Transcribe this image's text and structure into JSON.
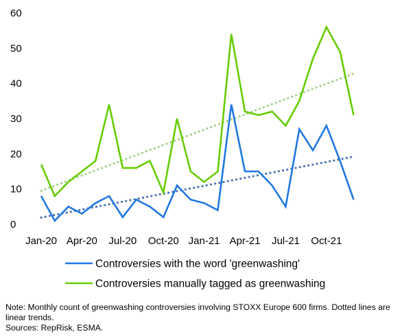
{
  "chart_data": {
    "type": "line",
    "x": [
      "Jan-20",
      "Feb-20",
      "Mar-20",
      "Apr-20",
      "May-20",
      "Jun-20",
      "Jul-20",
      "Aug-20",
      "Sep-20",
      "Oct-20",
      "Nov-20",
      "Dec-20",
      "Jan-21",
      "Feb-21",
      "Mar-21",
      "Apr-21",
      "May-21",
      "Jun-21",
      "Jul-21",
      "Aug-21",
      "Sep-21",
      "Oct-21",
      "Nov-21",
      "Dec-21"
    ],
    "x_tick_labels": [
      "Jan-20",
      "Apr-20",
      "Jul-20",
      "Oct-20",
      "Jan-21",
      "Apr-21",
      "Jul-21",
      "Oct-21"
    ],
    "y_ticks": [
      0,
      10,
      20,
      30,
      40,
      50,
      60
    ],
    "ylim": [
      0,
      60
    ],
    "grid": false,
    "legend_position": "bottom",
    "series": [
      {
        "name": "Controversies with the word 'greenwashing'",
        "color": "#1f77e0",
        "values": [
          8,
          1,
          5,
          3,
          6,
          8,
          2,
          7,
          5,
          2,
          11,
          7,
          6,
          4,
          34,
          15,
          15,
          11,
          5,
          27,
          21,
          28,
          18,
          7
        ],
        "trend": {
          "color": "#4a73b5",
          "start": 1.9,
          "end": 19.2
        }
      },
      {
        "name": "Controversies manually tagged as greenwashing",
        "color": "#66cc00",
        "values": [
          17,
          8,
          12,
          15,
          18,
          34,
          16,
          16,
          18,
          9,
          30,
          15,
          12,
          15,
          54,
          32,
          31,
          32,
          28,
          35,
          47,
          56,
          49,
          31
        ],
        "trend": {
          "color": "#a8d08d",
          "start": 9.5,
          "end": 42.8
        }
      }
    ]
  },
  "note": {
    "line1": "Note: Monthly count of greenwashing controversies involving STOXX Europe 600 firms. Dotted lines are linear trends.",
    "line2": "Sources: RepRisk, ESMA."
  }
}
